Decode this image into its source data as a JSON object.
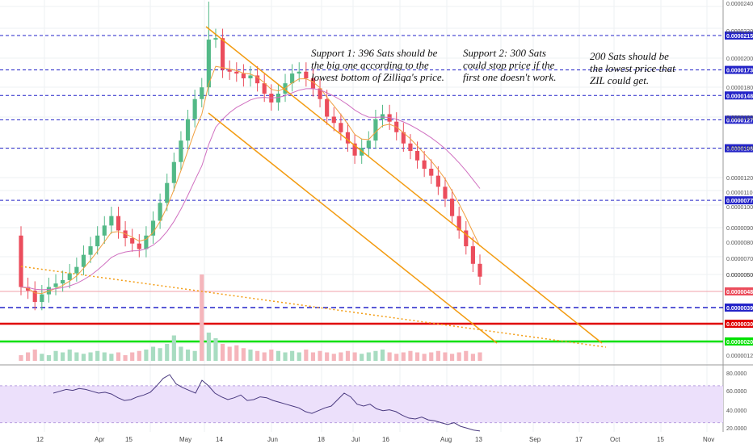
{
  "annotations": {
    "support1": "Support 1: 396 Sats should be\nthe big one according to the\nlowest bottom of Zilliqa's price.",
    "support2": "Support 2: 300 Sats\ncould stop price if the\nfirst one doesn't work.",
    "support3": "200 Sats should be\nthe lowest price that\nZIL could get."
  },
  "colors": {
    "bull": "#53b987",
    "bear": "#eb4d5c",
    "ema_fast": "#f0a040",
    "ema_slow": "#d070c0",
    "channel": "#f39c12",
    "dashed_level": "#2424c8",
    "support_red": "#e00000",
    "support_green": "#00e000",
    "rsi_line": "#4a3a80",
    "rsi_band": "#ece0fb"
  },
  "chart_data": {
    "type": "candlestick",
    "y_scale": "log",
    "price_axis_ticks": [
      "0.00002400",
      "0.00002200",
      "0.00002000",
      "0.00001800",
      "0.00001600",
      "0.00001400",
      "0.00001200",
      "0.00001100",
      "0.00001000",
      "0.00000900",
      "0.00000800",
      "0.00000700",
      "0.00000600",
      "0.00000500",
      "0.00000120"
    ],
    "x_ticks": [
      "12",
      "Apr",
      "15",
      "May",
      "14",
      "Jun",
      "18",
      "Jul",
      "16",
      "Aug",
      "13",
      "Sep",
      "17",
      "Oct",
      "15",
      "Nov"
    ],
    "levels": [
      {
        "label": "0.00002154",
        "value": 2.154e-05,
        "style": "dashed-blue"
      },
      {
        "label": "0.00001739",
        "value": 1.739e-05,
        "style": "dashed-blue"
      },
      {
        "label": "0.00001483",
        "value": 1.483e-05,
        "style": "dashed-blue"
      },
      {
        "label": "0.00001275",
        "value": 1.275e-05,
        "style": "dashed-blue"
      },
      {
        "label": "0.00001068",
        "value": 1.068e-05,
        "style": "dashed-blue"
      },
      {
        "label": "0.00000772",
        "value": 7.72e-06,
        "style": "dashed-blue"
      },
      {
        "label": "0.00000483",
        "value": 4.83e-06,
        "style": "current-price"
      },
      {
        "label": "0.00000396",
        "value": 3.96e-06,
        "style": "dashed-blue-support"
      },
      {
        "label": "0.00000300",
        "value": 3e-06,
        "style": "solid-red"
      },
      {
        "label": "0.00000200",
        "value": 2e-06,
        "style": "solid-green"
      }
    ],
    "candles_close": [
      4.5e-06,
      4.4e-06,
      4.1e-06,
      4.3e-06,
      4.5e-06,
      4.6e-06,
      4.7e-06,
      4.9e-06,
      5.1e-06,
      5.5e-06,
      5.8e-06,
      6.2e-06,
      6.6e-06,
      7e-06,
      6.4e-06,
      6.1e-06,
      5.9e-06,
      5.7e-06,
      6.2e-06,
      6.8e-06,
      7.6e-06,
      8.6e-06,
      9.8e-06,
      1.12e-05,
      1.28e-05,
      1.45e-05,
      1.56e-05,
      2.1e-05,
      2.12e-05,
      1.74e-05,
      1.72e-05,
      1.7e-05,
      1.65e-05,
      1.68e-05,
      1.6e-05,
      1.5e-05,
      1.42e-05,
      1.5e-05,
      1.6e-05,
      1.7e-05,
      1.72e-05,
      1.65e-05,
      1.55e-05,
      1.45e-05,
      1.3e-05,
      1.25e-05,
      1.18e-05,
      1.1e-05,
      1.02e-05,
      1.07e-05,
      1.12e-05,
      1.28e-05,
      1.32e-05,
      1.26e-05,
      1.18e-05,
      1.1e-05,
      1.05e-05,
      9.9e-06,
      9.4e-06,
      9e-06,
      8.4e-06,
      7.8e-06,
      7e-06,
      6.4e-06,
      5.8e-06,
      5.2e-06,
      4.8e-06
    ],
    "candles_open": [
      6.2e-06,
      4.5e-06,
      4.4e-06,
      4.1e-06,
      4.3e-06,
      4.5e-06,
      4.6e-06,
      4.7e-06,
      4.9e-06,
      5.1e-06,
      5.5e-06,
      5.8e-06,
      6.2e-06,
      6.6e-06,
      7e-06,
      6.4e-06,
      6.1e-06,
      5.9e-06,
      5.7e-06,
      6.2e-06,
      6.8e-06,
      7.6e-06,
      8.6e-06,
      9.8e-06,
      1.12e-05,
      1.28e-05,
      1.45e-05,
      1.56e-05,
      2.1e-05,
      2.12e-05,
      1.74e-05,
      1.72e-05,
      1.7e-05,
      1.65e-05,
      1.68e-05,
      1.6e-05,
      1.5e-05,
      1.42e-05,
      1.5e-05,
      1.6e-05,
      1.7e-05,
      1.72e-05,
      1.65e-05,
      1.55e-05,
      1.45e-05,
      1.3e-05,
      1.25e-05,
      1.18e-05,
      1.1e-05,
      1.02e-05,
      1.07e-05,
      1.12e-05,
      1.28e-05,
      1.32e-05,
      1.26e-05,
      1.18e-05,
      1.1e-05,
      1.05e-05,
      9.9e-06,
      9.4e-06,
      9e-06,
      8.4e-06,
      7.8e-06,
      7e-06,
      6.4e-06,
      5.8e-06,
      5.2e-06
    ],
    "rsi": {
      "ticks": [
        "80.0000",
        "60.0000",
        "40.0000",
        "20.0000"
      ],
      "ylim": [
        20,
        90
      ],
      "band": [
        30,
        70
      ],
      "values": [
        62,
        64,
        66,
        65,
        67,
        66,
        64,
        62,
        63,
        61,
        57,
        54,
        55,
        58,
        60,
        63,
        70,
        78,
        82,
        72,
        68,
        65,
        62,
        76,
        70,
        62,
        58,
        55,
        57,
        60,
        54,
        55,
        58,
        57,
        54,
        52,
        50,
        48,
        46,
        42,
        40,
        43,
        46,
        48,
        55,
        62,
        58,
        50,
        48,
        50,
        45,
        43,
        44,
        42,
        38,
        35,
        34,
        36,
        33,
        32,
        30,
        28,
        30,
        26,
        24,
        22,
        21
      ]
    },
    "volume": [
      0.2,
      0.3,
      0.4,
      0.25,
      0.2,
      0.35,
      0.3,
      0.4,
      0.3,
      0.25,
      0.3,
      0.35,
      0.3,
      0.25,
      0.3,
      0.2,
      0.3,
      0.35,
      0.4,
      0.5,
      0.45,
      0.6,
      0.9,
      0.5,
      0.4,
      0.35,
      0.9,
      1.0,
      0.8,
      0.6,
      0.5,
      0.55,
      0.45,
      0.4,
      0.35,
      0.3,
      0.4,
      0.35,
      0.3,
      0.35,
      0.3,
      0.4,
      0.3,
      0.35,
      0.3,
      0.25,
      0.3,
      0.35,
      0.3,
      0.25,
      0.3,
      0.35,
      0.4,
      0.3,
      0.25,
      0.3,
      0.35,
      0.3,
      0.25,
      0.3,
      0.35,
      0.3,
      0.25,
      0.3,
      0.35,
      0.25,
      0.3
    ]
  }
}
